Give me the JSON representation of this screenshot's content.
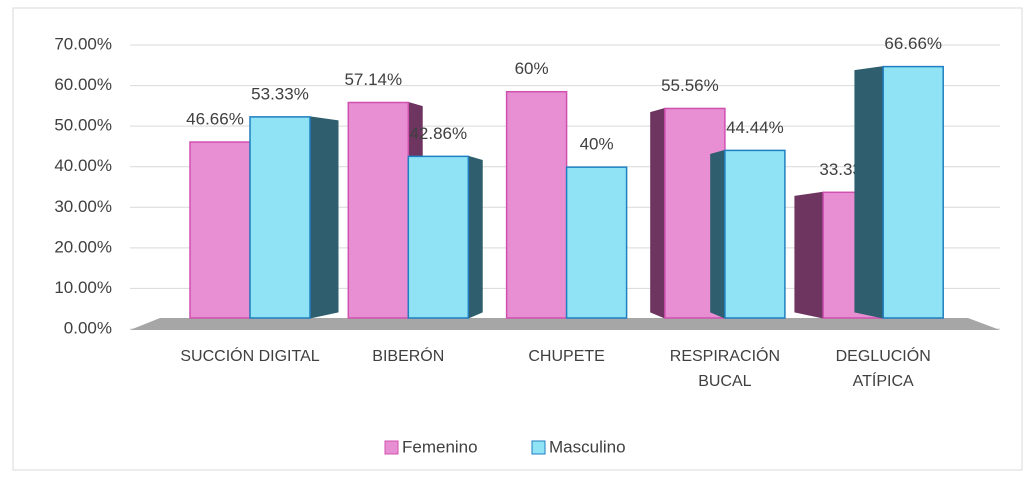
{
  "chart_data": {
    "type": "bar3d",
    "categories": [
      "SUCCIÓN DIGITAL",
      "BIBERÓN",
      "CHUPETE",
      "RESPIRACIÓN BUCAL",
      "DEGLUCIÓN ATÍPICA"
    ],
    "series": [
      {
        "name": "Femenino",
        "color": "#e78fd2",
        "side_color": "#6e3560",
        "values": [
          46.66,
          57.14,
          60,
          55.56,
          33.33
        ],
        "value_labels": [
          "46.66%",
          "57.14%",
          "60%",
          "55.56%",
          "33.33%"
        ]
      },
      {
        "name": "Masculino",
        "color": "#8fe3f5",
        "side_color": "#2f5f6e",
        "values": [
          53.33,
          42.86,
          40,
          44.44,
          66.66
        ],
        "value_labels": [
          "53.33%",
          "42.86%",
          "40%",
          "44.44%",
          "66.66%"
        ]
      }
    ],
    "ylim": [
      0,
      70
    ],
    "yticks": [
      {
        "value": 0,
        "label": "0.00%"
      },
      {
        "value": 10,
        "label": "10.00%"
      },
      {
        "value": 20,
        "label": "20.00%"
      },
      {
        "value": 30,
        "label": "30.00%"
      },
      {
        "value": 40,
        "label": "40.00%"
      },
      {
        "value": 50,
        "label": "50.00%"
      },
      {
        "value": 60,
        "label": "60.00%"
      },
      {
        "value": 70,
        "label": "70.00%"
      }
    ],
    "grid": true,
    "legend": "bottom"
  }
}
